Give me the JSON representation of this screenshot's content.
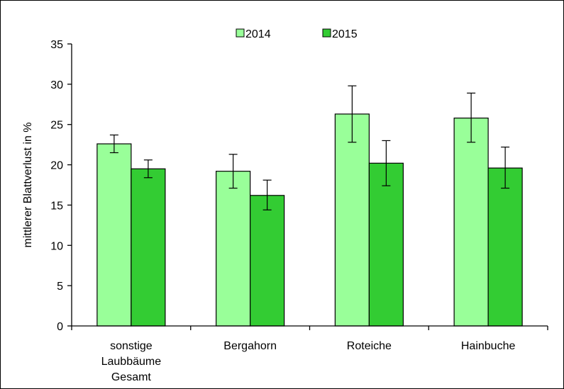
{
  "chart_data": {
    "type": "bar",
    "title": "",
    "xlabel": "",
    "ylabel": "mittlerer Blattverlust in %",
    "ylim": [
      0,
      35
    ],
    "yticks": [
      0,
      5,
      10,
      15,
      20,
      25,
      30,
      35
    ],
    "grid": false,
    "legend_position": "top-center",
    "categories": [
      [
        "sonstige",
        "Laubbäume",
        "Gesamt"
      ],
      [
        "Bergahorn"
      ],
      [
        "Roteiche"
      ],
      [
        "Hainbuche"
      ]
    ],
    "series": [
      {
        "name": "2014",
        "color": "#99FF99",
        "values": [
          22.6,
          19.2,
          26.3,
          25.8
        ],
        "error_low": [
          21.5,
          17.1,
          22.8,
          22.8
        ],
        "error_high": [
          23.7,
          21.3,
          29.8,
          28.9
        ]
      },
      {
        "name": "2015",
        "color": "#33CC33",
        "values": [
          19.5,
          16.2,
          20.2,
          19.6
        ],
        "error_low": [
          18.4,
          14.4,
          17.4,
          17.1
        ],
        "error_high": [
          20.6,
          18.1,
          23.0,
          22.2
        ]
      }
    ]
  }
}
